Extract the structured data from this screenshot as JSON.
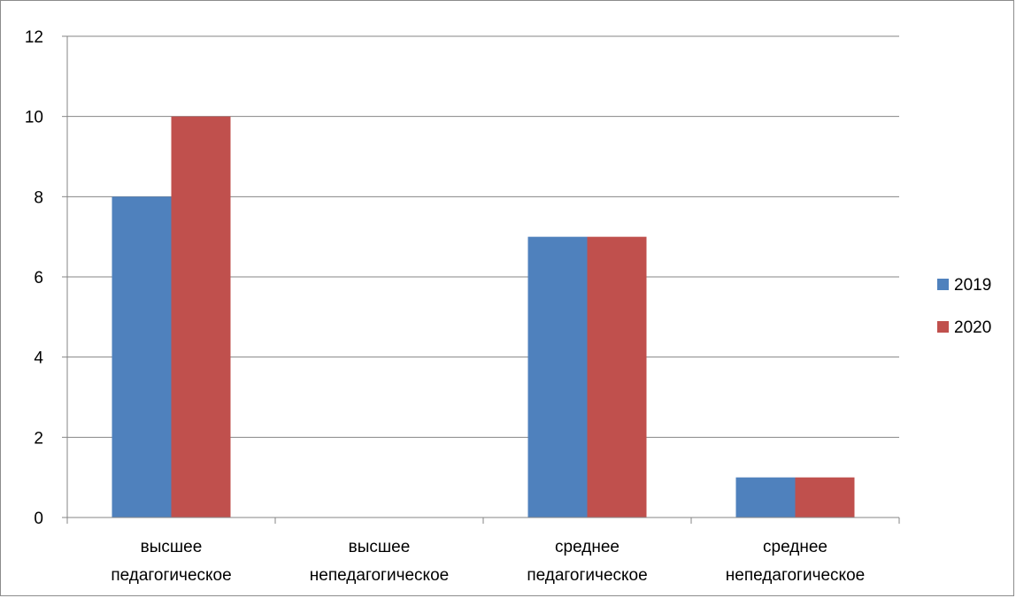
{
  "chart_data": {
    "type": "bar",
    "categories": [
      [
        "высшее",
        "педагогическое"
      ],
      [
        "высшее",
        "непедагогическое"
      ],
      [
        "среднее",
        "педагогическое"
      ],
      [
        "среднее",
        "непедагогическое"
      ]
    ],
    "series": [
      {
        "name": "2019",
        "values": [
          8,
          0,
          7,
          1
        ],
        "color": "#4f81bd"
      },
      {
        "name": "2020",
        "values": [
          10,
          0,
          7,
          1
        ],
        "color": "#c0504d"
      }
    ],
    "ylim": [
      0,
      12
    ],
    "yticks": [
      0,
      2,
      4,
      6,
      8,
      10,
      12
    ],
    "grid": true,
    "legend": "right"
  }
}
